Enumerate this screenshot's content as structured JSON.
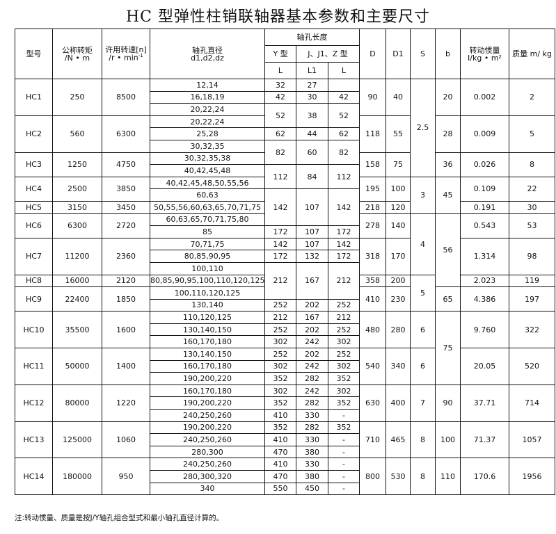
{
  "title": "HC 型弹性柱销联轴器基本参数和主要尺寸",
  "header": {
    "model": "型号",
    "torque": "公称转矩",
    "torque_unit": "/N • m",
    "speed": "许用转速[n]",
    "speed_unit": "/r • min",
    "speed_unit_sup": "-1",
    "bore_dia": "轴孔直径",
    "bore_dia_sub": "d1,d2,dz",
    "bore_len": "轴孔长度",
    "y_type": "Y 型",
    "jz_type": "J、J1、Z 型",
    "D": "D",
    "D1": "D1",
    "S": "S",
    "b": "b",
    "inertia": "转动惯量",
    "inertia_unit": "I/kg • m²",
    "mass": "质量 m/ kg",
    "L": "L",
    "L1": "L1",
    "L2": "L"
  },
  "grid": [
    [
      {
        "c": "model",
        "v": "HC1",
        "rs": 3
      },
      {
        "c": "torque",
        "v": "250",
        "rs": 3
      },
      {
        "c": "speed",
        "v": "8500",
        "rs": 3
      },
      {
        "c": "d",
        "v": "12,14"
      },
      {
        "c": "yl",
        "v": "32"
      },
      {
        "c": "l1",
        "v": "27"
      },
      {
        "c": "l",
        "v": ""
      },
      {
        "c": "D",
        "v": "90",
        "rs": 3
      },
      {
        "c": "D1",
        "v": "40",
        "rs": 3
      },
      {
        "c": "S",
        "v": "2.5",
        "rs": 8
      },
      {
        "c": "b",
        "v": "20",
        "rs": 3
      },
      {
        "c": "I",
        "v": "0.002",
        "rs": 3
      },
      {
        "c": "m",
        "v": "2",
        "rs": 3
      }
    ],
    [
      {
        "c": "d",
        "v": "16,18,19"
      },
      {
        "c": "yl",
        "v": "42"
      },
      {
        "c": "l1",
        "v": "30"
      },
      {
        "c": "l",
        "v": "42"
      }
    ],
    [
      {
        "c": "d",
        "v": "20,22,24"
      },
      {
        "c": "yl",
        "v": "52",
        "rs": 2
      },
      {
        "c": "l1",
        "v": "38",
        "rs": 2
      },
      {
        "c": "l",
        "v": "52",
        "rs": 2
      }
    ],
    [
      {
        "c": "model",
        "v": "HC2",
        "rs": 3
      },
      {
        "c": "torque",
        "v": "560",
        "rs": 3
      },
      {
        "c": "speed",
        "v": "6300",
        "rs": 3
      },
      {
        "c": "d",
        "v": "20,22,24"
      },
      {
        "c": "D",
        "v": "118",
        "rs": 3
      },
      {
        "c": "D1",
        "v": "55",
        "rs": 3
      },
      {
        "c": "b",
        "v": "28",
        "rs": 3
      },
      {
        "c": "I",
        "v": "0.009",
        "rs": 3
      },
      {
        "c": "m",
        "v": "5",
        "rs": 3
      }
    ],
    [
      {
        "c": "d",
        "v": "25,28"
      },
      {
        "c": "yl",
        "v": "62"
      },
      {
        "c": "l1",
        "v": "44"
      },
      {
        "c": "l",
        "v": "62"
      }
    ],
    [
      {
        "c": "d",
        "v": "30,32,35"
      },
      {
        "c": "yl",
        "v": "82",
        "rs": 2
      },
      {
        "c": "l1",
        "v": "60",
        "rs": 2
      },
      {
        "c": "l",
        "v": "82",
        "rs": 2
      }
    ],
    [
      {
        "c": "model",
        "v": "HC3",
        "rs": 2
      },
      {
        "c": "torque",
        "v": "1250",
        "rs": 2
      },
      {
        "c": "speed",
        "v": "4750",
        "rs": 2
      },
      {
        "c": "d",
        "v": "30,32,35,38"
      },
      {
        "c": "D",
        "v": "158",
        "rs": 2
      },
      {
        "c": "D1",
        "v": "75",
        "rs": 2
      },
      {
        "c": "b",
        "v": "36",
        "rs": 2
      },
      {
        "c": "I",
        "v": "0.026",
        "rs": 2
      },
      {
        "c": "m",
        "v": "8",
        "rs": 2
      }
    ],
    [
      {
        "c": "d",
        "v": "40,42,45,48"
      },
      {
        "c": "yl",
        "v": "112",
        "rs": 2
      },
      {
        "c": "l1",
        "v": "84",
        "rs": 2
      },
      {
        "c": "l",
        "v": "112",
        "rs": 2
      }
    ],
    [
      {
        "c": "model",
        "v": "HC4",
        "rs": 2
      },
      {
        "c": "torque",
        "v": "2500",
        "rs": 2
      },
      {
        "c": "speed",
        "v": "3850",
        "rs": 2
      },
      {
        "c": "d",
        "v": "40,42,45,48,50,55,56"
      },
      {
        "c": "D",
        "v": "195",
        "rs": 2
      },
      {
        "c": "D1",
        "v": "100",
        "rs": 2
      },
      {
        "c": "S",
        "v": "3",
        "rs": 3
      },
      {
        "c": "b",
        "v": "45",
        "rs": 3
      },
      {
        "c": "I",
        "v": "0.109",
        "rs": 2
      },
      {
        "c": "m",
        "v": "22",
        "rs": 2
      }
    ],
    [
      {
        "c": "d",
        "v": "60,63"
      },
      {
        "c": "yl",
        "v": "142",
        "rs": 3
      },
      {
        "c": "l1",
        "v": "107",
        "rs": 3
      },
      {
        "c": "l",
        "v": "142",
        "rs": 3
      }
    ],
    [
      {
        "c": "model",
        "v": "HC5"
      },
      {
        "c": "torque",
        "v": "3150"
      },
      {
        "c": "speed",
        "v": "3450"
      },
      {
        "c": "d",
        "v": "50,55,56,60,63,65,70,71,75"
      },
      {
        "c": "D",
        "v": "218"
      },
      {
        "c": "D1",
        "v": "120"
      },
      {
        "c": "I",
        "v": "0.191"
      },
      {
        "c": "m",
        "v": "30"
      }
    ],
    [
      {
        "c": "model",
        "v": "HC6",
        "rs": 2
      },
      {
        "c": "torque",
        "v": "6300",
        "rs": 2
      },
      {
        "c": "speed",
        "v": "2720",
        "rs": 2
      },
      {
        "c": "d",
        "v": "60,63,65,70,71,75,80"
      },
      {
        "c": "D",
        "v": "278",
        "rs": 2
      },
      {
        "c": "D1",
        "v": "140",
        "rs": 2
      },
      {
        "c": "S",
        "v": "4",
        "rs": 5
      },
      {
        "c": "b",
        "v": "56",
        "rs": 6
      },
      {
        "c": "I",
        "v": "0.543",
        "rs": 2
      },
      {
        "c": "m",
        "v": "53",
        "rs": 2
      }
    ],
    [
      {
        "c": "d",
        "v": "85"
      },
      {
        "c": "yl",
        "v": "172"
      },
      {
        "c": "l1",
        "v": "107"
      },
      {
        "c": "l",
        "v": "172"
      }
    ],
    [
      {
        "c": "model",
        "v": "HC7",
        "rs": 3
      },
      {
        "c": "torque",
        "v": "11200",
        "rs": 3
      },
      {
        "c": "speed",
        "v": "2360",
        "rs": 3
      },
      {
        "c": "d",
        "v": "70,71,75"
      },
      {
        "c": "yl",
        "v": "142"
      },
      {
        "c": "l1",
        "v": "107"
      },
      {
        "c": "l",
        "v": "142"
      },
      {
        "c": "D",
        "v": "318",
        "rs": 3
      },
      {
        "c": "D1",
        "v": "170",
        "rs": 3
      },
      {
        "c": "I",
        "v": "1.314",
        "rs": 3
      },
      {
        "c": "m",
        "v": "98",
        "rs": 3
      }
    ],
    [
      {
        "c": "d",
        "v": "80,85,90,95"
      },
      {
        "c": "yl",
        "v": "172"
      },
      {
        "c": "l1",
        "v": "132"
      },
      {
        "c": "l",
        "v": "172"
      }
    ],
    [
      {
        "c": "d",
        "v": "100,110"
      },
      {
        "c": "yl",
        "v": "212",
        "rs": 3
      },
      {
        "c": "l1",
        "v": "167",
        "rs": 3
      },
      {
        "c": "l",
        "v": "212",
        "rs": 3
      }
    ],
    [
      {
        "c": "model",
        "v": "HC8"
      },
      {
        "c": "torque",
        "v": "16000"
      },
      {
        "c": "speed",
        "v": "2120"
      },
      {
        "c": "d",
        "v": "80,85,90,95,100,110,120,125"
      },
      {
        "c": "D",
        "v": "358"
      },
      {
        "c": "D1",
        "v": "200"
      },
      {
        "c": "S",
        "v": "5",
        "rs": 3
      },
      {
        "c": "I",
        "v": "2.023"
      },
      {
        "c": "m",
        "v": "119"
      }
    ],
    [
      {
        "c": "model",
        "v": "HC9",
        "rs": 2
      },
      {
        "c": "torque",
        "v": "22400",
        "rs": 2
      },
      {
        "c": "speed",
        "v": "1850",
        "rs": 2
      },
      {
        "c": "d",
        "v": "100,110,120,125"
      },
      {
        "c": "D",
        "v": "410",
        "rs": 2
      },
      {
        "c": "D1",
        "v": "230",
        "rs": 2
      },
      {
        "c": "b",
        "v": "65",
        "rs": 2
      },
      {
        "c": "I",
        "v": "4.386",
        "rs": 2
      },
      {
        "c": "m",
        "v": "197",
        "rs": 2
      }
    ],
    [
      {
        "c": "d",
        "v": "130,140"
      },
      {
        "c": "yl",
        "v": "252"
      },
      {
        "c": "l1",
        "v": "202"
      },
      {
        "c": "l",
        "v": "252"
      }
    ],
    [
      {
        "c": "model",
        "v": "HC10",
        "rs": 3
      },
      {
        "c": "torque",
        "v": "35500",
        "rs": 3
      },
      {
        "c": "speed",
        "v": "1600",
        "rs": 3
      },
      {
        "c": "d",
        "v": "110,120,125"
      },
      {
        "c": "yl",
        "v": "212"
      },
      {
        "c": "l1",
        "v": "167"
      },
      {
        "c": "l",
        "v": "212"
      },
      {
        "c": "D",
        "v": "480",
        "rs": 3
      },
      {
        "c": "D1",
        "v": "280",
        "rs": 3
      },
      {
        "c": "S",
        "v": "6",
        "rs": 3
      },
      {
        "c": "b",
        "v": "75",
        "rs": 6
      },
      {
        "c": "I",
        "v": "9.760",
        "rs": 3
      },
      {
        "c": "m",
        "v": "322",
        "rs": 3
      }
    ],
    [
      {
        "c": "d",
        "v": "130,140,150"
      },
      {
        "c": "yl",
        "v": "252"
      },
      {
        "c": "l1",
        "v": "202"
      },
      {
        "c": "l",
        "v": "252"
      }
    ],
    [
      {
        "c": "d",
        "v": "160,170,180"
      },
      {
        "c": "yl",
        "v": "302"
      },
      {
        "c": "l1",
        "v": "242"
      },
      {
        "c": "l",
        "v": "302"
      }
    ],
    [
      {
        "c": "model",
        "v": "HC11",
        "rs": 3
      },
      {
        "c": "torque",
        "v": "50000",
        "rs": 3
      },
      {
        "c": "speed",
        "v": "1400",
        "rs": 3
      },
      {
        "c": "d",
        "v": "130,140,150"
      },
      {
        "c": "yl",
        "v": "252"
      },
      {
        "c": "l1",
        "v": "202"
      },
      {
        "c": "l",
        "v": "252"
      },
      {
        "c": "D",
        "v": "540",
        "rs": 3
      },
      {
        "c": "D1",
        "v": "340",
        "rs": 3
      },
      {
        "c": "S",
        "v": "6",
        "rs": 3
      },
      {
        "c": "I",
        "v": "20.05",
        "rs": 3
      },
      {
        "c": "m",
        "v": "520",
        "rs": 3
      }
    ],
    [
      {
        "c": "d",
        "v": "160,170,180"
      },
      {
        "c": "yl",
        "v": "302"
      },
      {
        "c": "l1",
        "v": "242"
      },
      {
        "c": "l",
        "v": "302"
      }
    ],
    [
      {
        "c": "d",
        "v": "190,200,220"
      },
      {
        "c": "yl",
        "v": "352"
      },
      {
        "c": "l1",
        "v": "282"
      },
      {
        "c": "l",
        "v": "352"
      }
    ],
    [
      {
        "c": "model",
        "v": "HC12",
        "rs": 3
      },
      {
        "c": "torque",
        "v": "80000",
        "rs": 3
      },
      {
        "c": "speed",
        "v": "1220",
        "rs": 3
      },
      {
        "c": "d",
        "v": "160,170,180"
      },
      {
        "c": "yl",
        "v": "302"
      },
      {
        "c": "l1",
        "v": "242"
      },
      {
        "c": "l",
        "v": "302"
      },
      {
        "c": "D",
        "v": "630",
        "rs": 3
      },
      {
        "c": "D1",
        "v": "400",
        "rs": 3
      },
      {
        "c": "S",
        "v": "7",
        "rs": 3
      },
      {
        "c": "b",
        "v": "90",
        "rs": 3
      },
      {
        "c": "I",
        "v": "37.71",
        "rs": 3
      },
      {
        "c": "m",
        "v": "714",
        "rs": 3
      }
    ],
    [
      {
        "c": "d",
        "v": "190,200,220"
      },
      {
        "c": "yl",
        "v": "352"
      },
      {
        "c": "l1",
        "v": "282"
      },
      {
        "c": "l",
        "v": "352"
      }
    ],
    [
      {
        "c": "d",
        "v": "240,250,260"
      },
      {
        "c": "yl",
        "v": "410"
      },
      {
        "c": "l1",
        "v": "330"
      },
      {
        "c": "l",
        "v": "-"
      }
    ],
    [
      {
        "c": "model",
        "v": "HC13",
        "rs": 3
      },
      {
        "c": "torque",
        "v": "125000",
        "rs": 3
      },
      {
        "c": "speed",
        "v": "1060",
        "rs": 3
      },
      {
        "c": "d",
        "v": "190,200,220"
      },
      {
        "c": "yl",
        "v": "352"
      },
      {
        "c": "l1",
        "v": "282"
      },
      {
        "c": "l",
        "v": "352"
      },
      {
        "c": "D",
        "v": "710",
        "rs": 3
      },
      {
        "c": "D1",
        "v": "465",
        "rs": 3
      },
      {
        "c": "S",
        "v": "8",
        "rs": 3
      },
      {
        "c": "b",
        "v": "100",
        "rs": 3
      },
      {
        "c": "I",
        "v": "71.37",
        "rs": 3
      },
      {
        "c": "m",
        "v": "1057",
        "rs": 3
      }
    ],
    [
      {
        "c": "d",
        "v": "240,250,260"
      },
      {
        "c": "yl",
        "v": "410"
      },
      {
        "c": "l1",
        "v": "330"
      },
      {
        "c": "l",
        "v": "-"
      }
    ],
    [
      {
        "c": "d",
        "v": "280,300"
      },
      {
        "c": "yl",
        "v": "470"
      },
      {
        "c": "l1",
        "v": "380"
      },
      {
        "c": "l",
        "v": "-"
      }
    ],
    [
      {
        "c": "model",
        "v": "HC14",
        "rs": 3
      },
      {
        "c": "torque",
        "v": "180000",
        "rs": 3
      },
      {
        "c": "speed",
        "v": "950",
        "rs": 3
      },
      {
        "c": "d",
        "v": "240,250,260"
      },
      {
        "c": "yl",
        "v": "410"
      },
      {
        "c": "l1",
        "v": "330"
      },
      {
        "c": "l",
        "v": "-"
      },
      {
        "c": "D",
        "v": "800",
        "rs": 3
      },
      {
        "c": "D1",
        "v": "530",
        "rs": 3
      },
      {
        "c": "S",
        "v": "8",
        "rs": 3
      },
      {
        "c": "b",
        "v": "110",
        "rs": 3
      },
      {
        "c": "I",
        "v": "170.6",
        "rs": 3
      },
      {
        "c": "m",
        "v": "1956",
        "rs": 3
      }
    ],
    [
      {
        "c": "d",
        "v": "280,300,320"
      },
      {
        "c": "yl",
        "v": "470"
      },
      {
        "c": "l1",
        "v": "380"
      },
      {
        "c": "l",
        "v": "-"
      }
    ],
    [
      {
        "c": "d",
        "v": "340"
      },
      {
        "c": "yl",
        "v": "550"
      },
      {
        "c": "l1",
        "v": "450"
      },
      {
        "c": "l",
        "v": "-"
      }
    ]
  ],
  "note": "注:转动惯量、质量是按J/Y轴孔组合型式和最小轴孔直径计算的。"
}
